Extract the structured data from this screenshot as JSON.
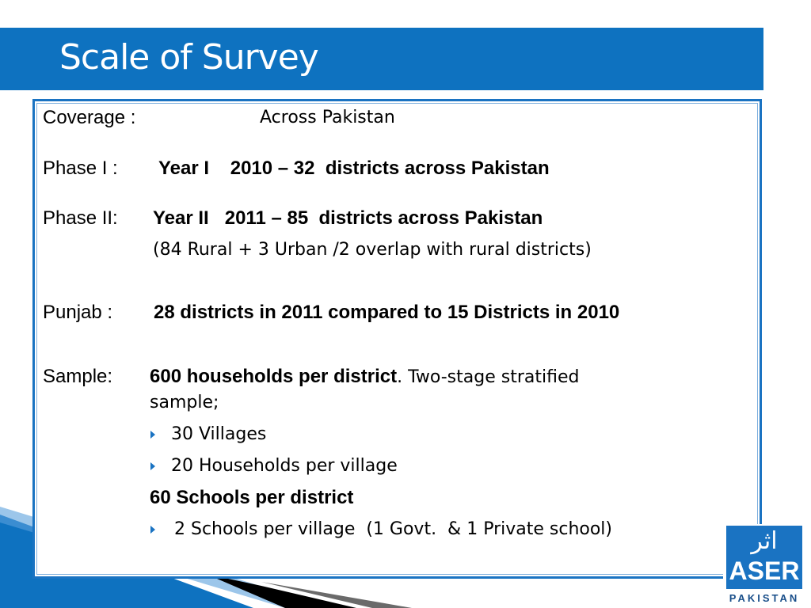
{
  "slide": {
    "title": "Scale of Survey"
  },
  "content": {
    "coverage_label": "Coverage :",
    "coverage_value": "Across Pakistan",
    "phase1_label": "Phase I :",
    "phase1_value": "Year I    2010 – 32  districts across Pakistan",
    "phase2_label": "Phase II:",
    "phase2_value": "Year II   2011 – 85  districts across Pakistan",
    "phase2_note": "(84 Rural + 3 Urban /2 overlap with rural districts)",
    "punjab_label": "Punjab :",
    "punjab_value": "28 districts in 2011  compared to 15 Districts in 2010",
    "sample_label": "Sample:",
    "sample_bold": "600 households per district",
    "sample_rest": ". Two-stage stratified",
    "sample_rest2": "sample;",
    "bullet_villages": "30 Villages",
    "bullet_households": "20 Households per village",
    "schools_heading": "60 Schools per district",
    "bullet_schools": "2 Schools per village  (1 Govt.  & 1 Private school)"
  },
  "logo": {
    "urdu": "اثر",
    "name": "ASER",
    "country": "PAKISTAN"
  },
  "colors": {
    "title_bar": "#0e72c0",
    "accent": "#1a73c2"
  }
}
